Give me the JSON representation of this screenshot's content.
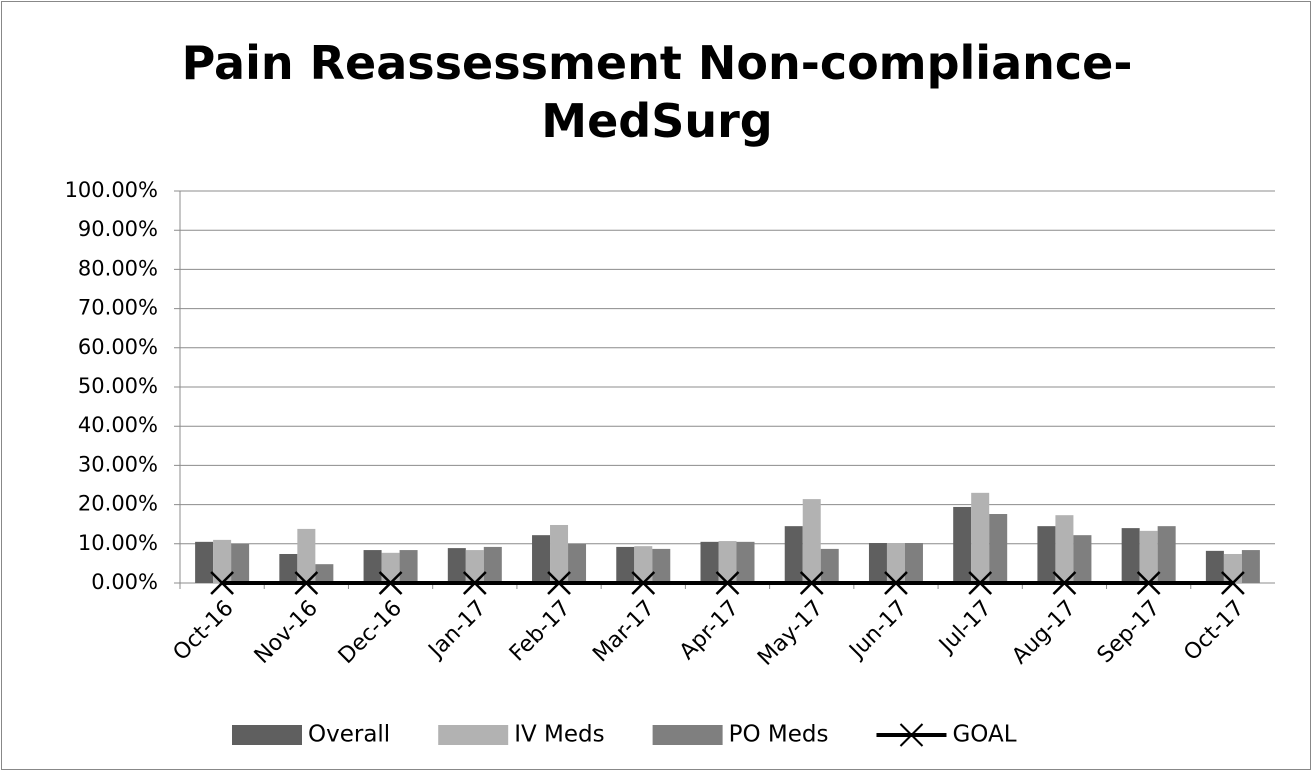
{
  "chart_data": {
    "type": "bar",
    "title": "Pain Reassessment Non-compliance-MedSurg",
    "categories": [
      "Oct-16",
      "Nov-16",
      "Dec-16",
      "Jan-17",
      "Feb-17",
      "Mar-17",
      "Apr-17",
      "May-17",
      "Jun-17",
      "Jul-17",
      "Aug-17",
      "Sep-17",
      "Oct-17"
    ],
    "series": [
      {
        "name": "Overall",
        "color": "#5f5f5f",
        "values": [
          10.5,
          7.4,
          8.4,
          8.9,
          12.2,
          9.2,
          10.5,
          14.5,
          10.2,
          19.4,
          14.5,
          14,
          8.2
        ]
      },
      {
        "name": "IV Meds",
        "color": "#b2b2b2",
        "values": [
          11,
          13.8,
          7.7,
          8.4,
          14.8,
          9.4,
          10.7,
          21.4,
          10.2,
          23,
          17.3,
          13.3,
          7.4
        ]
      },
      {
        "name": "PO Meds",
        "color": "#7f7f7f",
        "values": [
          10,
          4.8,
          8.4,
          9.2,
          10,
          8.7,
          10.5,
          8.7,
          10.2,
          17.6,
          12.2,
          14.5,
          8.4
        ]
      },
      {
        "name": "GOAL",
        "color": "#000000",
        "type": "line",
        "marker": "x",
        "values": [
          0,
          0,
          0,
          0,
          0,
          0,
          0,
          0,
          0,
          0,
          0,
          0,
          0
        ]
      }
    ],
    "ylim": [
      0,
      100
    ],
    "yticks": [
      {
        "value": 0,
        "label": "0.00%"
      },
      {
        "value": 10,
        "label": "10.00%"
      },
      {
        "value": 20,
        "label": "20.00%"
      },
      {
        "value": 30,
        "label": "30.00%"
      },
      {
        "value": 40,
        "label": "40.00%"
      },
      {
        "value": 50,
        "label": "50.00%"
      },
      {
        "value": 60,
        "label": "60.00%"
      },
      {
        "value": 70,
        "label": "70.00%"
      },
      {
        "value": 80,
        "label": "80.00%"
      },
      {
        "value": 90,
        "label": "90.00%"
      },
      {
        "value": 100,
        "label": "100.00%"
      }
    ],
    "grid": true,
    "legend": "bottom"
  }
}
